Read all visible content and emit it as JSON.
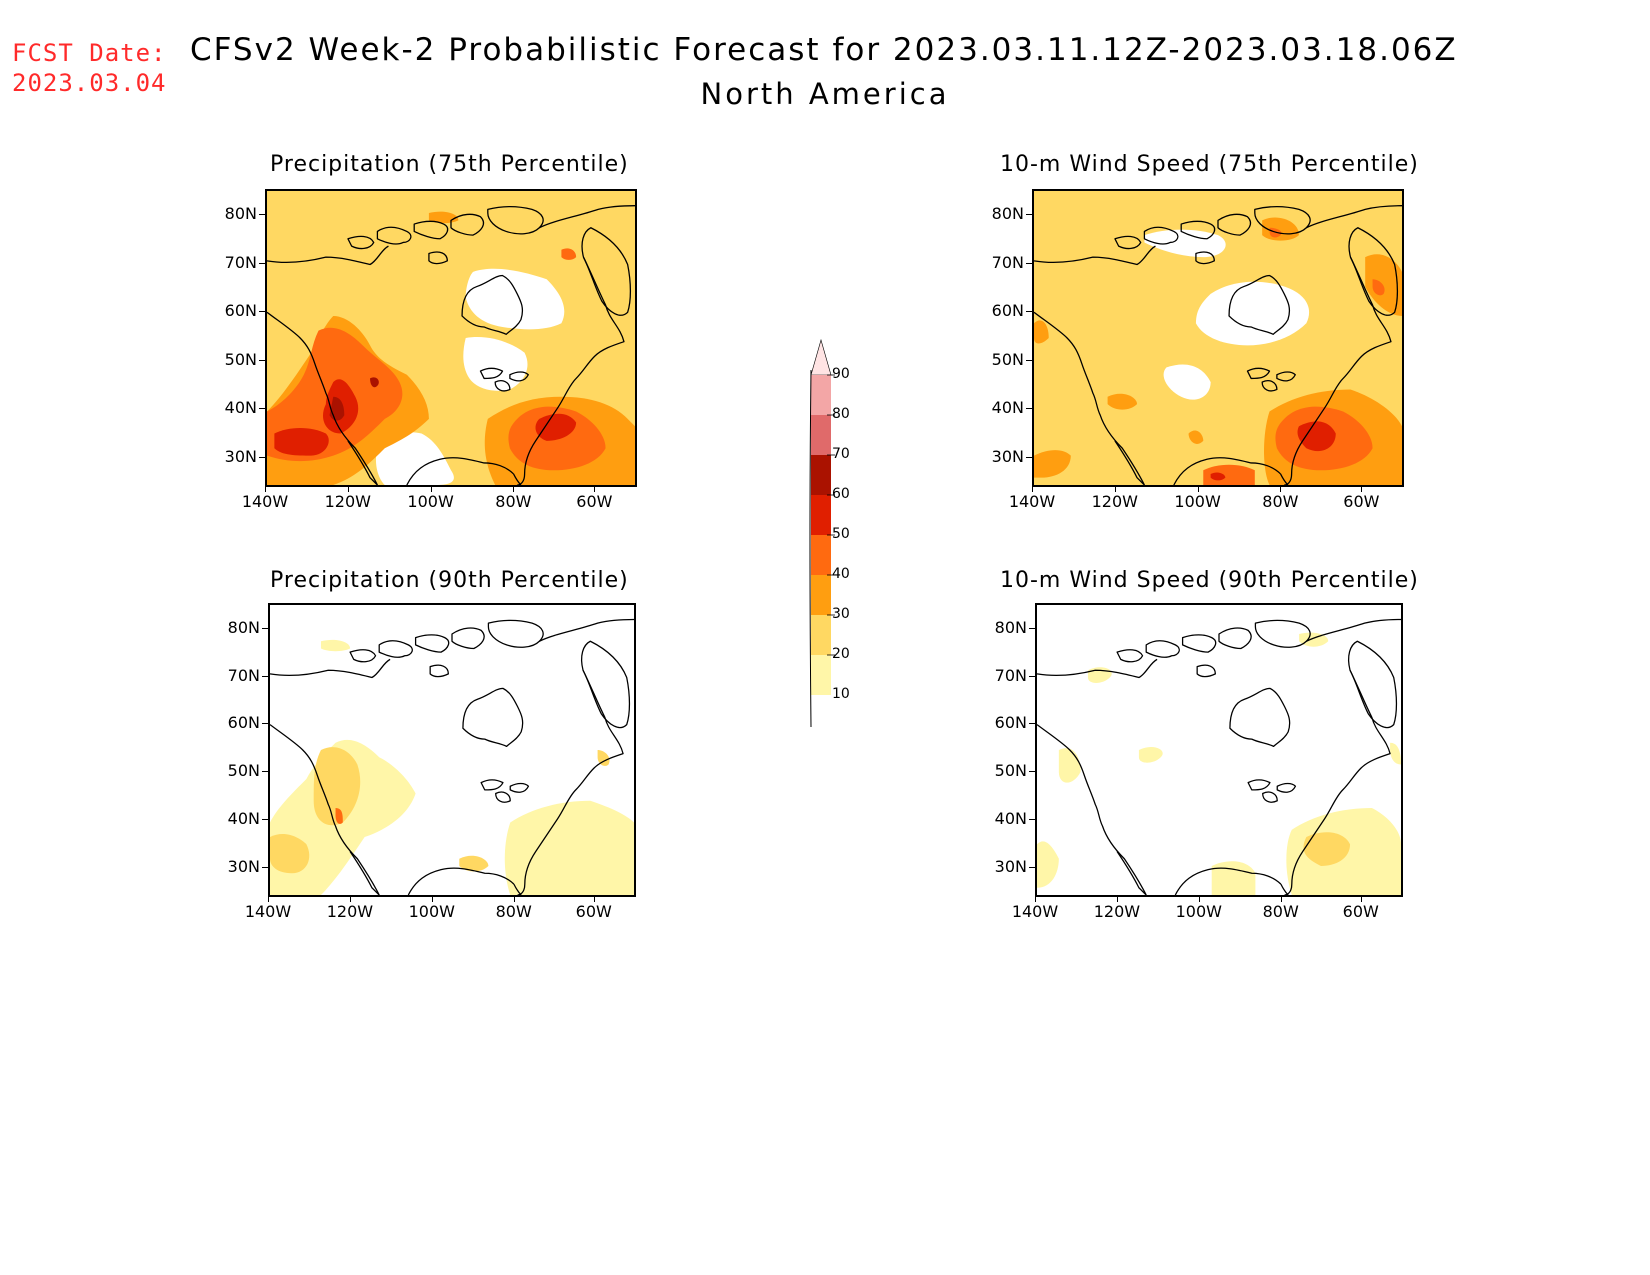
{
  "header": {
    "fcst_label": "FCST Date:",
    "fcst_date": "2023.03.04",
    "title": "CFSv2 Week-2 Probabilistic Forecast for 2023.03.11.12Z-2023.03.18.06Z",
    "region": "North America"
  },
  "axes": {
    "lat_labels": [
      "80N",
      "70N",
      "60N",
      "50N",
      "40N",
      "30N"
    ],
    "lon_labels": [
      "140W",
      "120W",
      "100W",
      "80W",
      "60W"
    ]
  },
  "panels": [
    {
      "id": "precip75",
      "title": "Precipitation (75th Percentile)"
    },
    {
      "id": "wind75",
      "title": "10-m Wind Speed (75th Percentile)"
    },
    {
      "id": "precip90",
      "title": "Precipitation (90th Percentile)"
    },
    {
      "id": "wind90",
      "title": "10-m Wind Speed (90th Percentile)"
    }
  ],
  "legend": {
    "levels": [
      "90",
      "80",
      "70",
      "60",
      "50",
      "40",
      "30",
      "20",
      "10"
    ],
    "colors": [
      "#ffe4e4",
      "#f3a6a6",
      "#e06a6a",
      "#aa1200",
      "#e01f00",
      "#ff6a10",
      "#ff9e10",
      "#ffd862",
      "#fff6a8"
    ]
  }
}
